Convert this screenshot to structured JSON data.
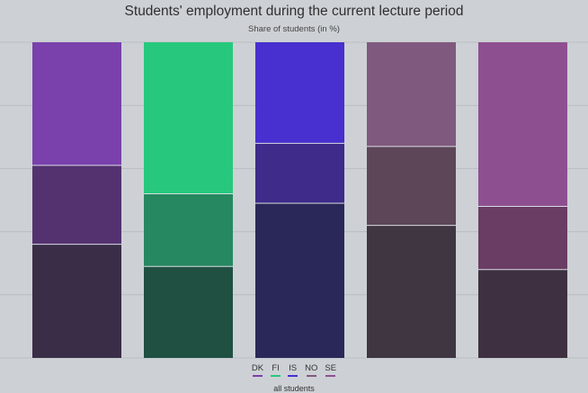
{
  "chart_data": {
    "type": "bar",
    "stacked": true,
    "title": "Students' employment during the current lecture period",
    "subtitle": "Share of students (in %)",
    "categories": [
      "DK",
      "FI",
      "IS",
      "NO",
      "SE"
    ],
    "ylim": [
      0,
      100
    ],
    "grid": true,
    "legend_position": "bottom",
    "legend_caption": "all students",
    "series": [
      {
        "values": [
          36,
          29,
          49,
          42,
          28
        ]
      },
      {
        "values": [
          25,
          23,
          19,
          25,
          20
        ]
      },
      {
        "values": [
          39,
          48,
          32,
          33,
          52
        ]
      }
    ],
    "colors": [
      [
        "#3a2d48",
        "#543270",
        "#7a40ac"
      ],
      [
        "#205042",
        "#268860",
        "#27c87e"
      ],
      [
        "#2a2858",
        "#3e2b8a",
        "#482fcf"
      ],
      [
        "#3f3642",
        "#5d4658",
        "#80597e"
      ],
      [
        "#3e3041",
        "#693d64",
        "#8e4f91"
      ]
    ]
  }
}
